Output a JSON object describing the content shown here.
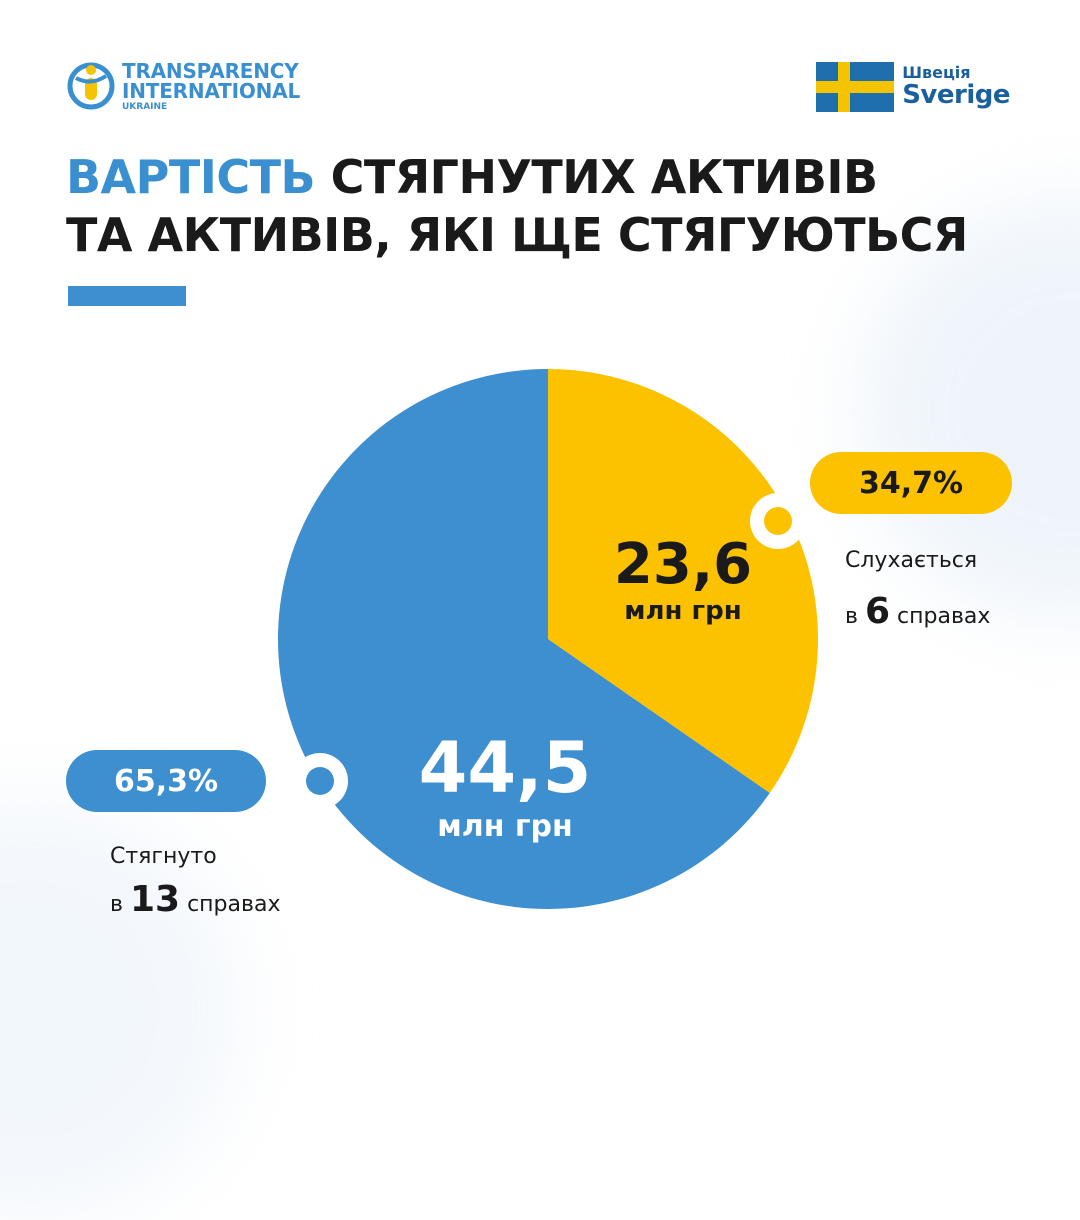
{
  "logos": {
    "ti": {
      "line1": "TRANSPARENCY",
      "line2": "INTERNATIONAL",
      "sub": "UKRAINE"
    },
    "sweden": {
      "ua": "Швеція",
      "sv": "Sverige",
      "flag_blue": "#1f6fae",
      "flag_yellow": "#f5c400"
    }
  },
  "title": {
    "accent": "ВАРТІСТЬ",
    "rest1": " СТЯГНУТИХ АКТИВІВ",
    "line2": "ТА АКТИВІВ, ЯКІ ЩЕ СТЯГУЮТЬСЯ"
  },
  "colors": {
    "blue": "#3d8fd0",
    "yellow": "#fcc200",
    "text": "#1a1a1a"
  },
  "chart_data": {
    "type": "pie",
    "slices": [
      {
        "value": 23.6,
        "value_label": "23,6",
        "unit": "млн грн",
        "percent": "34,7%",
        "caption": "Слухається",
        "count_prefix": "в",
        "count": "6",
        "count_suffix": "справах",
        "color": "#fcc200",
        "text_color": "#1a1a1a"
      },
      {
        "value": 44.5,
        "value_label": "44,5",
        "unit": "млн грн",
        "percent": "65,3%",
        "caption": "Стягнуто",
        "count_prefix": "в",
        "count": "13",
        "count_suffix": "справах",
        "color": "#3d8fd0",
        "text_color": "#ffffff"
      }
    ]
  }
}
